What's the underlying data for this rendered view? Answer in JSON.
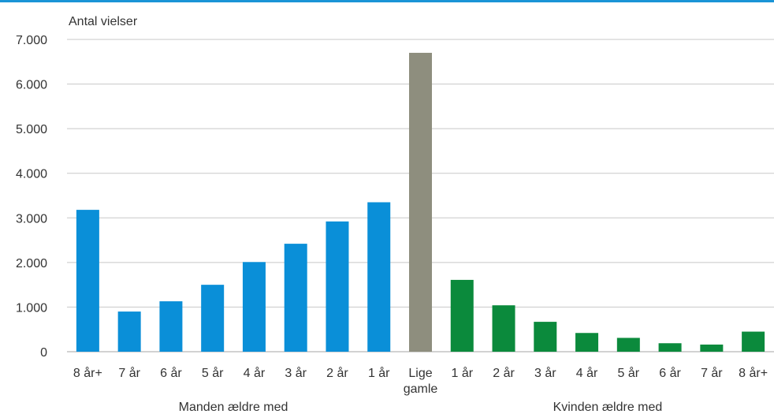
{
  "chart_data": {
    "type": "bar",
    "ylabel": "Antal vielser",
    "ylim": [
      0,
      7000
    ],
    "yticks": [
      "0",
      "1.000",
      "2.000",
      "3.000",
      "4.000",
      "5.000",
      "6.000",
      "7.000"
    ],
    "ytick_values": [
      0,
      1000,
      2000,
      3000,
      4000,
      5000,
      6000,
      7000
    ],
    "grid": true,
    "categories": [
      [
        "8 år+"
      ],
      [
        "7 år"
      ],
      [
        "6 år"
      ],
      [
        "5 år"
      ],
      [
        "4 år"
      ],
      [
        "3 år"
      ],
      [
        "2 år"
      ],
      [
        "1 år"
      ],
      [
        "Lige",
        "gamle"
      ],
      [
        "1 år"
      ],
      [
        "2 år"
      ],
      [
        "3 år"
      ],
      [
        "4 år"
      ],
      [
        "5 år"
      ],
      [
        "6 år"
      ],
      [
        "7 år"
      ],
      [
        "8 år+"
      ]
    ],
    "values": [
      3180,
      900,
      1130,
      1500,
      2010,
      2420,
      2920,
      3350,
      6700,
      1610,
      1040,
      670,
      420,
      310,
      190,
      160,
      450
    ],
    "bar_groups": [
      "man",
      "man",
      "man",
      "man",
      "man",
      "man",
      "man",
      "man",
      "equal",
      "woman",
      "woman",
      "woman",
      "woman",
      "woman",
      "woman",
      "woman",
      "woman"
    ],
    "group_labels": [
      {
        "text": "Manden ældre med",
        "from": 0,
        "to": 7
      },
      {
        "text": "Kvinden ældre med",
        "from": 9,
        "to": 16
      }
    ]
  },
  "colors": {
    "man": "#0a8fd8",
    "equal": "#8e8e7e",
    "woman": "#0b8a3c",
    "rule": "#1a94d6",
    "grid": "#c8c8c8",
    "text": "#333333"
  }
}
